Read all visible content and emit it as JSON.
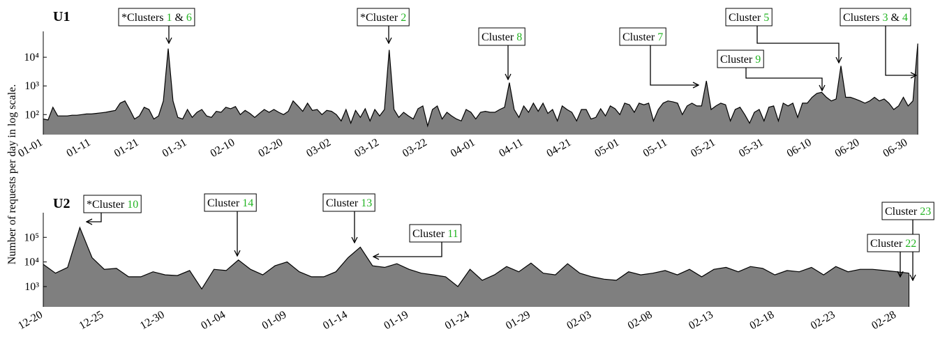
{
  "y_label": "Number of requests per day in log scale.",
  "chart_data": [
    {
      "type": "area",
      "title": "U1",
      "log_scale": true,
      "color": "#7f7f7f",
      "number_color": "#22b422",
      "x": [
        0,
        1,
        2,
        3,
        4,
        5,
        6,
        7,
        8,
        9,
        10,
        11,
        12,
        13,
        14,
        15,
        16,
        17,
        18,
        19,
        20,
        21,
        22,
        23,
        24,
        25,
        26,
        27,
        28,
        29,
        30,
        31,
        32,
        33,
        34,
        35,
        36,
        37,
        38,
        39,
        40,
        41,
        42,
        43,
        44,
        45,
        46,
        47,
        48,
        49,
        50,
        51,
        52,
        53,
        54,
        55,
        56,
        57,
        58,
        59,
        60,
        61,
        62,
        63,
        64,
        65,
        66,
        67,
        68,
        69,
        70,
        71,
        72,
        73,
        74,
        75,
        76,
        77,
        78,
        79,
        80,
        81,
        82,
        83,
        84,
        85,
        86,
        87,
        88,
        89,
        90,
        91,
        92,
        93,
        94,
        95,
        96,
        97,
        98,
        99,
        100,
        101,
        102,
        103,
        104,
        105,
        106,
        107,
        108,
        109,
        110,
        111,
        112,
        113,
        114,
        115,
        116,
        117,
        118,
        119,
        120,
        121,
        122,
        123,
        124,
        125,
        126,
        127,
        128,
        129,
        130,
        131,
        132,
        133,
        134,
        135,
        136,
        137,
        138,
        139,
        140,
        141,
        142,
        143,
        144,
        145,
        146,
        147,
        148,
        149,
        150,
        151,
        152,
        153,
        154,
        155,
        156,
        157,
        158,
        159,
        160,
        161,
        162,
        163,
        164,
        165,
        166,
        167,
        168,
        169,
        170,
        171,
        172,
        173,
        174,
        175,
        176,
        177,
        178,
        179,
        180,
        181,
        182
      ],
      "values": [
        70,
        65,
        180,
        90,
        90,
        90,
        95,
        95,
        100,
        105,
        105,
        110,
        115,
        120,
        130,
        140,
        250,
        300,
        150,
        70,
        90,
        180,
        150,
        70,
        90,
        300,
        20000,
        300,
        80,
        70,
        150,
        80,
        120,
        150,
        90,
        80,
        130,
        120,
        180,
        160,
        190,
        100,
        140,
        110,
        80,
        110,
        150,
        120,
        150,
        120,
        100,
        130,
        300,
        200,
        130,
        250,
        140,
        150,
        100,
        140,
        130,
        100,
        60,
        150,
        50,
        140,
        80,
        160,
        60,
        150,
        90,
        150,
        18000,
        150,
        80,
        120,
        90,
        70,
        160,
        200,
        40,
        150,
        200,
        70,
        120,
        90,
        70,
        60,
        150,
        120,
        70,
        120,
        130,
        120,
        120,
        150,
        180,
        1300,
        150,
        80,
        200,
        120,
        250,
        130,
        250,
        110,
        150,
        60,
        200,
        150,
        120,
        60,
        150,
        150,
        70,
        80,
        160,
        90,
        200,
        160,
        100,
        250,
        220,
        120,
        250,
        220,
        250,
        60,
        150,
        250,
        300,
        280,
        250,
        100,
        200,
        250,
        200,
        200,
        1500,
        150,
        200,
        250,
        220,
        60,
        150,
        180,
        100,
        50,
        120,
        150,
        60,
        180,
        200,
        60,
        250,
        200,
        250,
        80,
        250,
        250,
        400,
        550,
        600,
        400,
        300,
        350,
        5000,
        400,
        400,
        350,
        300,
        250,
        300,
        400,
        300,
        350,
        250,
        150,
        200,
        400,
        200,
        300,
        30000
      ],
      "xlim": [
        0,
        183
      ],
      "ylim": [
        20,
        80000
      ],
      "xticks": [
        {
          "value": 0,
          "label": "01-01"
        },
        {
          "value": 10,
          "label": "01-11"
        },
        {
          "value": 20,
          "label": "01-21"
        },
        {
          "value": 30,
          "label": "01-31"
        },
        {
          "value": 40,
          "label": "02-10"
        },
        {
          "value": 50,
          "label": "02-20"
        },
        {
          "value": 60,
          "label": "03-02"
        },
        {
          "value": 70,
          "label": "03-12"
        },
        {
          "value": 80,
          "label": "03-22"
        },
        {
          "value": 90,
          "label": "04-01"
        },
        {
          "value": 100,
          "label": "04-11"
        },
        {
          "value": 110,
          "label": "04-21"
        },
        {
          "value": 120,
          "label": "05-01"
        },
        {
          "value": 130,
          "label": "05-11"
        },
        {
          "value": 140,
          "label": "05-21"
        },
        {
          "value": 150,
          "label": "05-31"
        },
        {
          "value": 160,
          "label": "06-10"
        },
        {
          "value": 170,
          "label": "06-20"
        },
        {
          "value": 180,
          "label": "06-30"
        }
      ],
      "yticks": [
        {
          "value": 100,
          "label": "10²"
        },
        {
          "value": 1000,
          "label": "10³"
        },
        {
          "value": 10000,
          "label": "10⁴"
        }
      ],
      "annotations": [
        {
          "parts": [
            "*Clusters ",
            "1",
            " & ",
            "6"
          ]
        },
        {
          "parts": [
            "*Cluster ",
            "2"
          ]
        },
        {
          "parts": [
            "Cluster ",
            "8"
          ]
        },
        {
          "parts": [
            "Cluster ",
            "7"
          ]
        },
        {
          "parts": [
            "Cluster ",
            "5"
          ]
        },
        {
          "parts": [
            "Cluster ",
            "9"
          ]
        },
        {
          "parts": [
            "Clusters ",
            "3",
            " & ",
            "4"
          ]
        }
      ]
    },
    {
      "type": "area",
      "title": "U2",
      "log_scale": true,
      "color": "#7f7f7f",
      "number_color": "#22b422",
      "x": [
        0,
        1,
        2,
        3,
        4,
        5,
        6,
        7,
        8,
        9,
        10,
        11,
        12,
        13,
        14,
        15,
        16,
        17,
        18,
        19,
        20,
        21,
        22,
        23,
        24,
        25,
        26,
        27,
        28,
        29,
        30,
        31,
        32,
        33,
        34,
        35,
        36,
        37,
        38,
        39,
        40,
        41,
        42,
        43,
        44,
        45,
        46,
        47,
        48,
        49,
        50,
        51,
        52,
        53,
        54,
        55,
        56,
        57,
        58,
        59,
        60,
        61,
        62,
        63,
        64,
        65,
        66,
        67,
        68,
        69,
        70,
        71
      ],
      "values": [
        8000,
        3500,
        6000,
        250000,
        15000,
        5000,
        5500,
        2500,
        2500,
        4000,
        3000,
        2800,
        4500,
        800,
        5000,
        4500,
        12000,
        5000,
        3000,
        7000,
        10000,
        4000,
        2500,
        2500,
        4000,
        15000,
        40000,
        7000,
        6000,
        8500,
        5000,
        3500,
        3000,
        2500,
        1000,
        5000,
        1800,
        3000,
        6500,
        4000,
        9000,
        3500,
        3000,
        8500,
        3500,
        2500,
        2000,
        1800,
        4000,
        3000,
        3500,
        4500,
        3000,
        5000,
        2500,
        5000,
        6000,
        4000,
        6500,
        5500,
        3000,
        4500,
        4000,
        6000,
        3000,
        6500,
        4000,
        5000,
        5000,
        4500,
        4000,
        3500
      ],
      "xlim": [
        0,
        72
      ],
      "ylim": [
        150,
        1000000
      ],
      "xticks": [
        {
          "value": 0,
          "label": "12-20"
        },
        {
          "value": 5,
          "label": "12-25"
        },
        {
          "value": 10,
          "label": "12-30"
        },
        {
          "value": 15,
          "label": "01-04"
        },
        {
          "value": 20,
          "label": "01-09"
        },
        {
          "value": 25,
          "label": "01-14"
        },
        {
          "value": 30,
          "label": "01-19"
        },
        {
          "value": 35,
          "label": "01-24"
        },
        {
          "value": 40,
          "label": "01-29"
        },
        {
          "value": 45,
          "label": "02-03"
        },
        {
          "value": 50,
          "label": "02-08"
        },
        {
          "value": 55,
          "label": "02-13"
        },
        {
          "value": 60,
          "label": "02-18"
        },
        {
          "value": 65,
          "label": "02-23"
        },
        {
          "value": 70,
          "label": "02-28"
        }
      ],
      "yticks": [
        {
          "value": 1000,
          "label": "10³"
        },
        {
          "value": 10000,
          "label": "10⁴"
        },
        {
          "value": 100000,
          "label": "10⁵"
        }
      ],
      "annotations": [
        {
          "parts": [
            "*Cluster ",
            "10"
          ]
        },
        {
          "parts": [
            "Cluster ",
            "14"
          ]
        },
        {
          "parts": [
            "Cluster ",
            "13"
          ]
        },
        {
          "parts": [
            "Cluster ",
            "11"
          ]
        },
        {
          "parts": [
            "Cluster ",
            "23"
          ]
        },
        {
          "parts": [
            "Cluster ",
            "22"
          ]
        }
      ]
    }
  ]
}
